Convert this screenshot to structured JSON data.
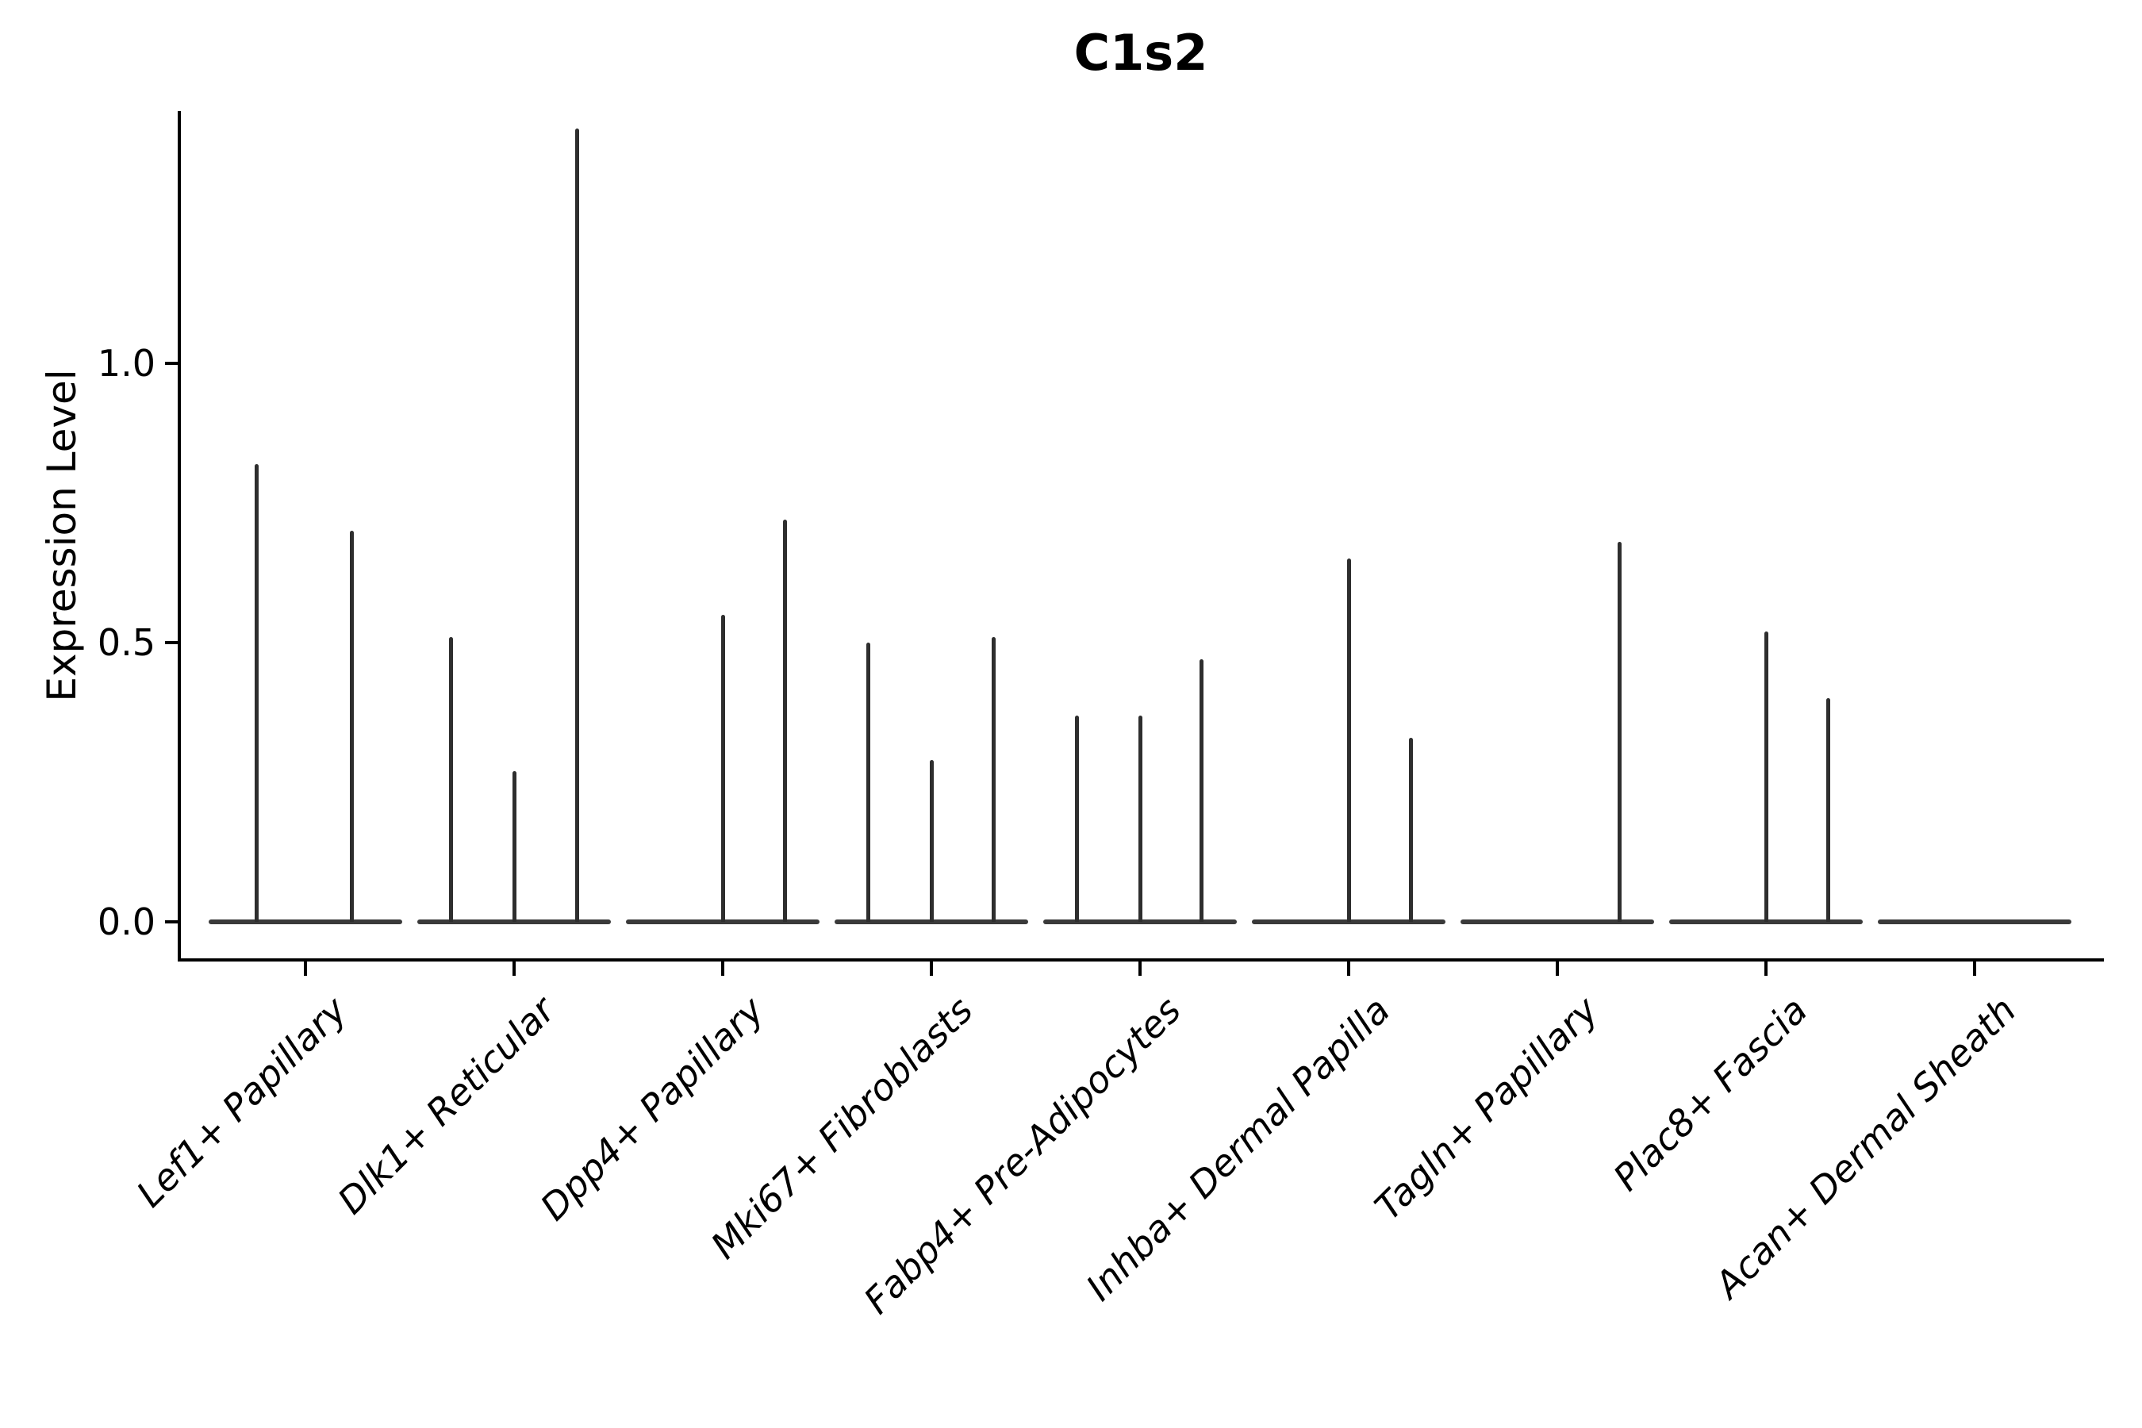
{
  "figure": {
    "title": "C1s2",
    "background": "#ffffff"
  },
  "colors": {
    "axis": "#000000",
    "text": "#000000",
    "violin_spike": "#2e2e2e",
    "violin_baseline": "#3a3a3a"
  },
  "chart_data": {
    "type": "violin",
    "title": "C1s2",
    "xlabel": "",
    "ylabel": "Expression Level",
    "ytick_labels": [
      "0.0",
      "0.5",
      "1.0"
    ],
    "ytick_values": [
      0.0,
      0.5,
      1.0
    ],
    "ylim": [
      -0.07,
      1.45
    ],
    "grid": false,
    "legend": "none",
    "note": "Flattened violins: density mass at 0 forms a flat baseline per category; thin vertical spikes mark sub-violins whose maximum expression reaches the given value. Offsets are fractions of the category slot width relative to category center.",
    "categories": [
      "Lef1+ Papillary",
      "Dlk1+ Reticular",
      "Dpp4+ Papillary",
      "Mki67+ Fibroblasts",
      "Fabp4+ Pre-Adipocytes",
      "Inhba+ Dermal Papilla",
      "Tagln+ Papillary",
      "Plac8+ Fascia",
      "Acan+ Dermal Sheath"
    ],
    "violins": [
      {
        "category": "Lef1+ Papillary",
        "baseline": 0.0,
        "spikes": [
          {
            "offset": -0.234,
            "max": 0.82
          },
          {
            "offset": 0.224,
            "max": 0.7
          }
        ]
      },
      {
        "category": "Dlk1+ Reticular",
        "baseline": 0.0,
        "spikes": [
          {
            "offset": -0.304,
            "max": 0.51
          },
          {
            "offset": 0.0,
            "max": 0.27
          },
          {
            "offset": 0.304,
            "max": 1.42
          }
        ]
      },
      {
        "category": "Dpp4+ Papillary",
        "baseline": 0.0,
        "spikes": [
          {
            "offset": 0.0,
            "max": 0.55
          },
          {
            "offset": 0.297,
            "max": 0.72
          }
        ]
      },
      {
        "category": "Mki67+ Fibroblasts",
        "baseline": 0.0,
        "spikes": [
          {
            "offset": -0.304,
            "max": 0.5
          },
          {
            "offset": 0.0,
            "max": 0.29
          },
          {
            "offset": 0.3,
            "max": 0.51
          }
        ]
      },
      {
        "category": "Fabp4+ Pre-Adipocytes",
        "baseline": 0.0,
        "spikes": [
          {
            "offset": -0.304,
            "max": 0.37
          },
          {
            "offset": 0.0,
            "max": 0.37
          },
          {
            "offset": 0.293,
            "max": 0.47
          }
        ]
      },
      {
        "category": "Inhba+ Dermal Papilla",
        "baseline": 0.0,
        "spikes": [
          {
            "offset": 0.0,
            "max": 0.65
          },
          {
            "offset": 0.297,
            "max": 0.33
          }
        ]
      },
      {
        "category": "Tagln+ Papillary",
        "baseline": 0.0,
        "spikes": [
          {
            "offset": 0.297,
            "max": 0.68
          }
        ]
      },
      {
        "category": "Plac8+ Fascia",
        "baseline": 0.0,
        "spikes": [
          {
            "offset": 0.0,
            "max": 0.52
          },
          {
            "offset": 0.297,
            "max": 0.4
          }
        ]
      },
      {
        "category": "Acan+ Dermal Sheath",
        "baseline": 0.0,
        "spikes": []
      }
    ]
  }
}
